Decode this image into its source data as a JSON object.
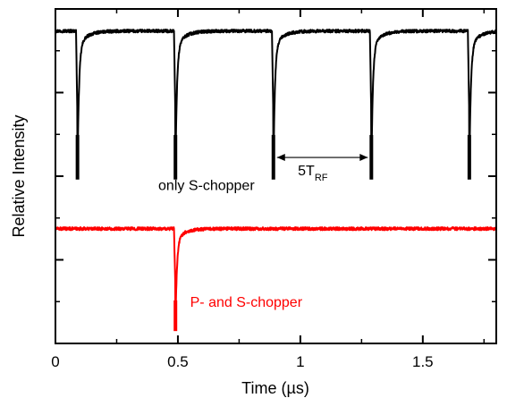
{
  "chart_data": {
    "type": "line",
    "xlabel": "Time (µs)",
    "ylabel": "Relative Intensity",
    "xlim": [
      0,
      1.8
    ],
    "xticks": [
      {
        "value": 0,
        "label": "0"
      },
      {
        "value": 0.5,
        "label": "0.5"
      },
      {
        "value": 1,
        "label": "1"
      },
      {
        "value": 1.5,
        "label": "1.5"
      }
    ],
    "ylim": [
      0,
      1
    ],
    "y_ticks_labeled": false,
    "grid": false,
    "series": [
      {
        "name": "only S-chopper",
        "color": "#000000",
        "baseline": 0.934,
        "dip_min": 0.49,
        "dips": [
          0.09,
          0.49,
          0.89,
          1.29,
          1.69
        ]
      },
      {
        "name": "P- and S-chopper",
        "color": "#ff0000",
        "baseline": 0.343,
        "dip_min": 0.037,
        "dips": [
          0.49
        ]
      }
    ],
    "annotations": {
      "period_label_main": "5T",
      "period_label_sub": "RF",
      "period_from": 0.89,
      "period_to": 1.29,
      "period_y": 0.556
    }
  }
}
